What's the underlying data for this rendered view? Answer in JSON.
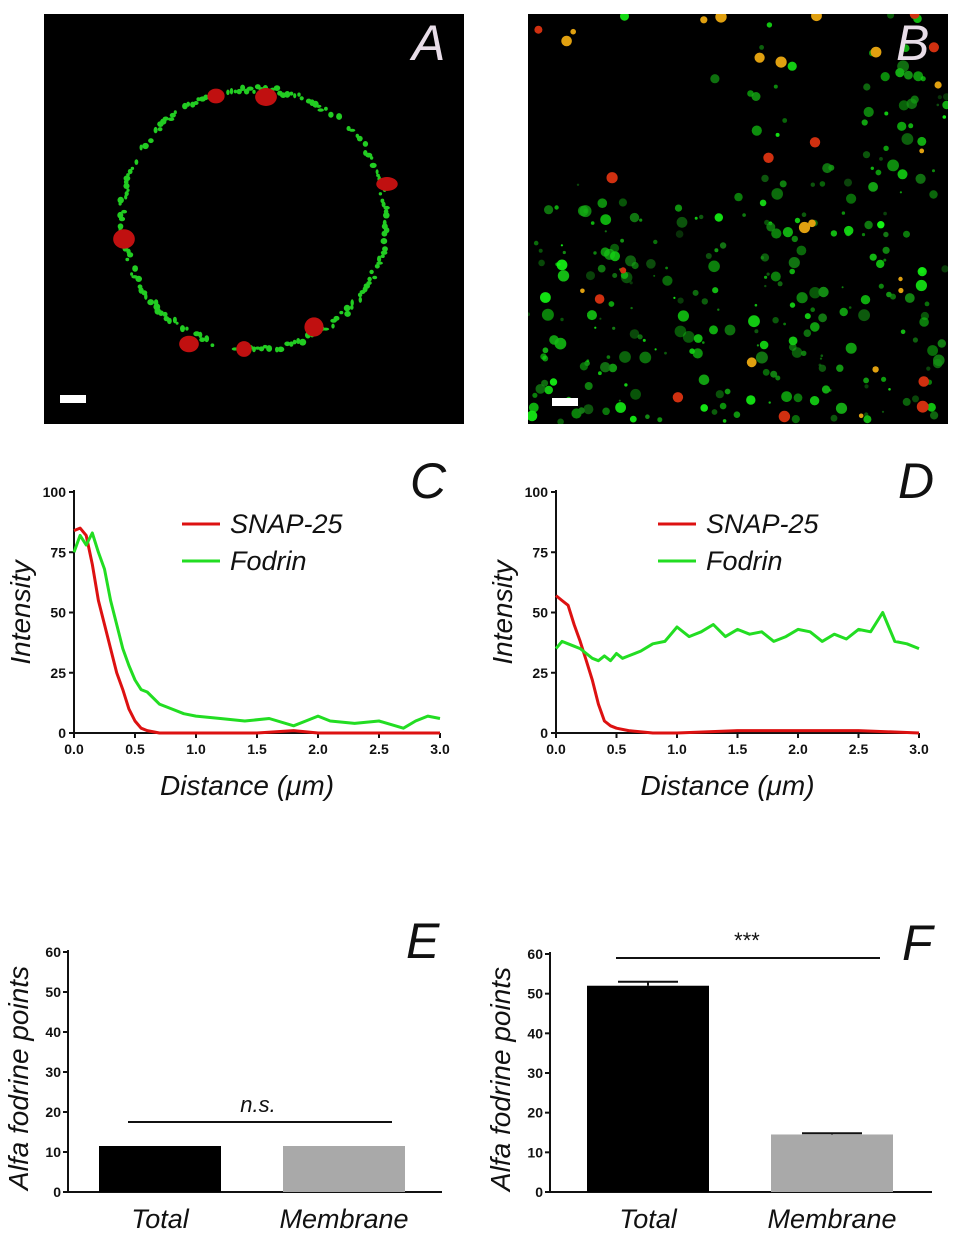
{
  "panels": {
    "A": {
      "letter": "A"
    },
    "B": {
      "letter": "B"
    }
  },
  "colors": {
    "snap25": "#dd1111",
    "fodrin": "#22dd22",
    "total_bar": "#000000",
    "membrane_bar": "#a9a9a9"
  },
  "chart_data": [
    {
      "panel": "C",
      "type": "line",
      "xlabel": "Distance (μm)",
      "ylabel": "Intensity",
      "xlim": [
        0,
        3.0
      ],
      "ylim": [
        0,
        100
      ],
      "xticks": [
        "0.0",
        "0.5",
        "1.0",
        "1.5",
        "2.0",
        "2.5",
        "3.0"
      ],
      "yticks": [
        "0",
        "25",
        "50",
        "75",
        "100"
      ],
      "legend": "top-right",
      "series": [
        {
          "name": "SNAP-25",
          "color": "#dd1111",
          "x": [
            0,
            0.05,
            0.1,
            0.15,
            0.2,
            0.25,
            0.3,
            0.35,
            0.4,
            0.45,
            0.5,
            0.55,
            0.6,
            0.7,
            0.8,
            1.0,
            1.2,
            1.5,
            1.8,
            2.0,
            2.5,
            3.0
          ],
          "y": [
            84,
            85,
            82,
            70,
            55,
            45,
            35,
            25,
            18,
            10,
            5,
            2,
            1,
            0,
            0,
            0,
            0,
            0,
            1,
            0,
            0,
            0
          ]
        },
        {
          "name": "Fodrin",
          "color": "#22dd22",
          "x": [
            0,
            0.05,
            0.1,
            0.15,
            0.2,
            0.25,
            0.3,
            0.35,
            0.4,
            0.45,
            0.5,
            0.55,
            0.6,
            0.7,
            0.8,
            0.9,
            1.0,
            1.2,
            1.4,
            1.6,
            1.8,
            1.9,
            2.0,
            2.1,
            2.3,
            2.5,
            2.7,
            2.8,
            2.9,
            3.0
          ],
          "y": [
            75,
            82,
            78,
            83,
            75,
            68,
            55,
            45,
            35,
            28,
            22,
            18,
            17,
            12,
            10,
            8,
            7,
            6,
            5,
            6,
            3,
            5,
            7,
            5,
            4,
            5,
            2,
            5,
            7,
            6
          ]
        }
      ]
    },
    {
      "panel": "D",
      "type": "line",
      "xlabel": "Distance (μm)",
      "ylabel": "Intensity",
      "xlim": [
        0,
        3.0
      ],
      "ylim": [
        0,
        100
      ],
      "xticks": [
        "0.0",
        "0.5",
        "1.0",
        "1.5",
        "2.0",
        "2.5",
        "3.0"
      ],
      "yticks": [
        "0",
        "25",
        "50",
        "75",
        "100"
      ],
      "legend": "top-right",
      "series": [
        {
          "name": "SNAP-25",
          "color": "#dd1111",
          "x": [
            0,
            0.05,
            0.1,
            0.15,
            0.2,
            0.25,
            0.3,
            0.35,
            0.4,
            0.45,
            0.5,
            0.6,
            0.8,
            1.0,
            1.5,
            2.0,
            2.5,
            3.0
          ],
          "y": [
            57,
            55,
            53,
            45,
            38,
            30,
            22,
            12,
            5,
            3,
            2,
            1,
            0,
            0,
            1,
            1,
            1,
            0
          ],
          "note": ""
        },
        {
          "name": "Fodrin",
          "color": "#22dd22",
          "x": [
            0,
            0.05,
            0.1,
            0.15,
            0.2,
            0.25,
            0.3,
            0.35,
            0.4,
            0.45,
            0.5,
            0.55,
            0.6,
            0.7,
            0.8,
            0.9,
            1.0,
            1.1,
            1.2,
            1.3,
            1.4,
            1.5,
            1.6,
            1.7,
            1.8,
            1.9,
            2.0,
            2.1,
            2.2,
            2.3,
            2.4,
            2.5,
            2.6,
            2.7,
            2.8,
            2.9,
            3.0
          ],
          "y": [
            35,
            38,
            37,
            36,
            35,
            33,
            31,
            30,
            32,
            30,
            33,
            31,
            32,
            34,
            37,
            38,
            44,
            40,
            42,
            45,
            40,
            43,
            41,
            42,
            38,
            40,
            43,
            42,
            38,
            41,
            39,
            43,
            42,
            50,
            38,
            37,
            35
          ]
        }
      ]
    },
    {
      "panel": "E",
      "type": "bar",
      "ylabel": "Alfa fodrine points",
      "ylim": [
        0,
        60
      ],
      "yticks": [
        "0",
        "10",
        "20",
        "30",
        "40",
        "50",
        "60"
      ],
      "categories": [
        "Total",
        "Membrane"
      ],
      "values": [
        11.5,
        11.5
      ],
      "significance": "n.s."
    },
    {
      "panel": "F",
      "type": "bar",
      "ylabel": "Alfa fodrine points",
      "ylim": [
        0,
        60
      ],
      "yticks": [
        "0",
        "10",
        "20",
        "30",
        "40",
        "50",
        "60"
      ],
      "categories": [
        "Total",
        "Membrane"
      ],
      "values": [
        52,
        14.5
      ],
      "errors": [
        1,
        0.3
      ],
      "significance": "***"
    }
  ]
}
